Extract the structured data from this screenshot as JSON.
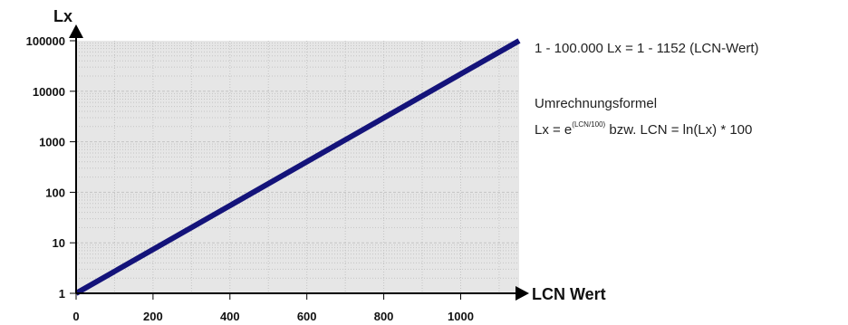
{
  "chart_data": {
    "type": "line",
    "x_axis": {
      "label": "LCN Wert",
      "range": [
        0,
        1152
      ],
      "ticks": [
        "0",
        "200",
        "400",
        "600",
        "800",
        "1000"
      ]
    },
    "y_axis": {
      "label": "Lx",
      "scale": "log",
      "range": [
        1,
        100000
      ],
      "ticks": [
        "1",
        "10",
        "100",
        "1000",
        "10000",
        "100000"
      ]
    },
    "series": [
      {
        "x": [
          0,
          1152
        ],
        "y": [
          1,
          100000
        ]
      }
    ],
    "grid": true,
    "colors": {
      "line": "#14137a",
      "plot_background": "#e6e6e6",
      "grid": "#c4c4c4"
    }
  },
  "annotations": {
    "range_text": "1 - 100.000 Lx   =  1 - 1152 (LCN-Wert)",
    "formula_title": "Umrechnungsformel",
    "formula_prefix": "Lx = e",
    "formula_exponent": "(LCN/100)",
    "formula_suffix": " bzw. LCN = ln(Lx) * 100"
  }
}
